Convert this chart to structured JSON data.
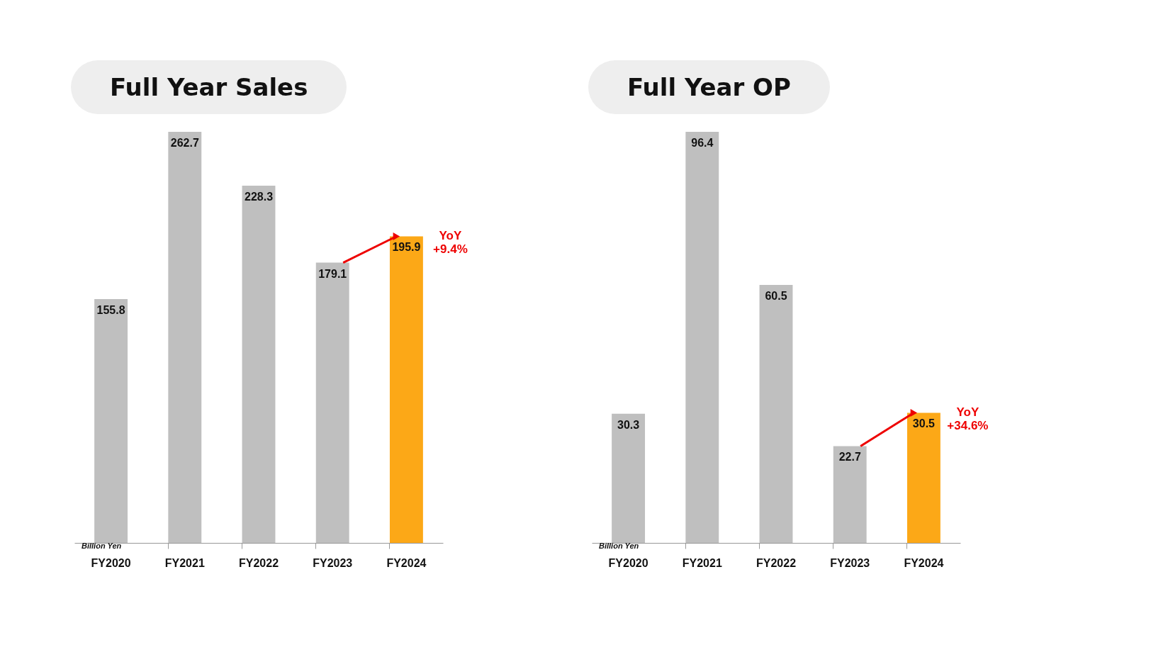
{
  "chart_data": [
    {
      "type": "bar",
      "title": "Full Year Sales",
      "categories": [
        "FY2020",
        "FY2021",
        "FY2022",
        "FY2023",
        "FY2024"
      ],
      "values": [
        155.8,
        262.7,
        228.3,
        179.1,
        195.9
      ],
      "colors": [
        "#bfbfbf",
        "#bfbfbf",
        "#bfbfbf",
        "#bfbfbf",
        "#fca817"
      ],
      "data_labels": true,
      "annotations": [
        "Billion Yen",
        {
          "text": "YoY +9.4%",
          "x": "FY2024",
          "y": 195.9
        }
      ]
    },
    {
      "type": "bar",
      "title": "Full Year OP",
      "categories": [
        "FY2020",
        "FY2021",
        "FY2022",
        "FY2023",
        "FY2024"
      ],
      "values": [
        30.3,
        96.4,
        60.5,
        22.7,
        30.5
      ],
      "colors": [
        "#bfbfbf",
        "#bfbfbf",
        "#bfbfbf",
        "#bfbfbf",
        "#fca817"
      ],
      "data_labels": true,
      "annotations": [
        "Billion Yen",
        {
          "text": "YoY +34.6%",
          "x": "FY2024",
          "y": 30.5
        }
      ]
    }
  ]
}
